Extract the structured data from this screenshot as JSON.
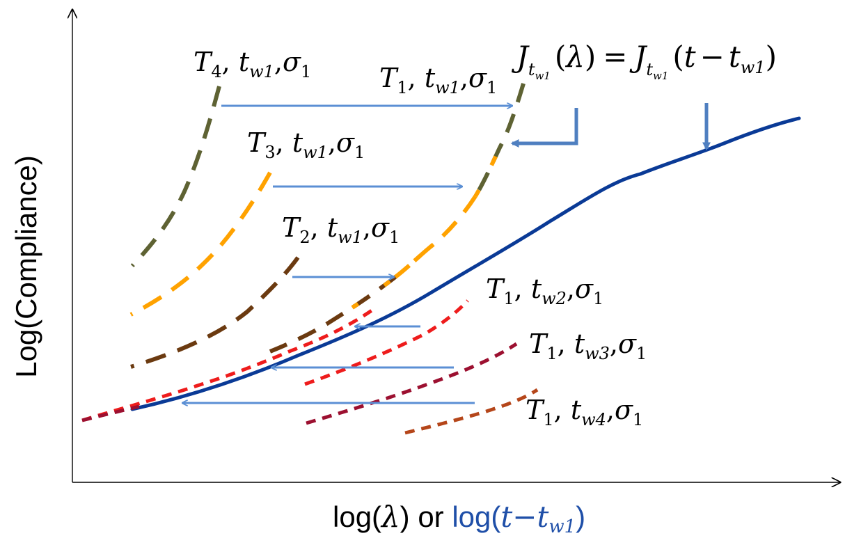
{
  "axes": {
    "y_label": "Log(Compliance)",
    "x_label_part1": "log(",
    "x_label_lambda": "λ",
    "x_label_part2": ") or ",
    "x_label_blue_log": "log(",
    "x_label_blue_t": "t",
    "x_label_blue_minus": "−",
    "x_label_blue_t2": "t",
    "x_label_blue_sub": "w1",
    "x_label_blue_close": ")"
  },
  "colors": {
    "master_curve": "#0a3a96",
    "shift_arrow": "#5b8fd4",
    "annotation_arrow": "#4f7fc0",
    "olive": "#5e6233",
    "orange": "#ffa200",
    "brown": "#6b3a10",
    "red": "#ee1c1c",
    "crimson": "#9c1030",
    "rust": "#b5461a",
    "x_label_blue": "#1f4fa8"
  },
  "labels": {
    "T4": {
      "T": "T",
      "Tsub": "4",
      "t": "t",
      "tsub": "w1",
      "s": "σ",
      "ssub": "1"
    },
    "T1a": {
      "T": "T",
      "Tsub": "1",
      "t": "t",
      "tsub": "w1",
      "s": "σ",
      "ssub": "1"
    },
    "T3": {
      "T": "T",
      "Tsub": "3",
      "t": "t",
      "tsub": "w1",
      "s": "σ",
      "ssub": "1"
    },
    "T2": {
      "T": "T",
      "Tsub": "2",
      "t": "t",
      "tsub": "w1",
      "s": "σ",
      "ssub": "1"
    },
    "Tw2": {
      "T": "T",
      "Tsub": "1",
      "t": "t",
      "tsub": "w2",
      "s": "σ",
      "ssub": "1"
    },
    "Tw3": {
      "T": "T",
      "Tsub": "1",
      "t": "t",
      "tsub": "w3",
      "s": "σ",
      "ssub": "1"
    },
    "Tw4": {
      "T": "T",
      "Tsub": "1",
      "t": "t",
      "tsub": "w4",
      "s": "σ",
      "ssub": "1"
    }
  },
  "equation": {
    "J": "J",
    "sub_t": "t",
    "sub_w": "w1",
    "lparen": "(",
    "lambda": "λ",
    "rparen": ")",
    "eq": "=",
    "t": "t",
    "minus": "−",
    "t2": "t",
    "t2sub": "w1"
  }
}
